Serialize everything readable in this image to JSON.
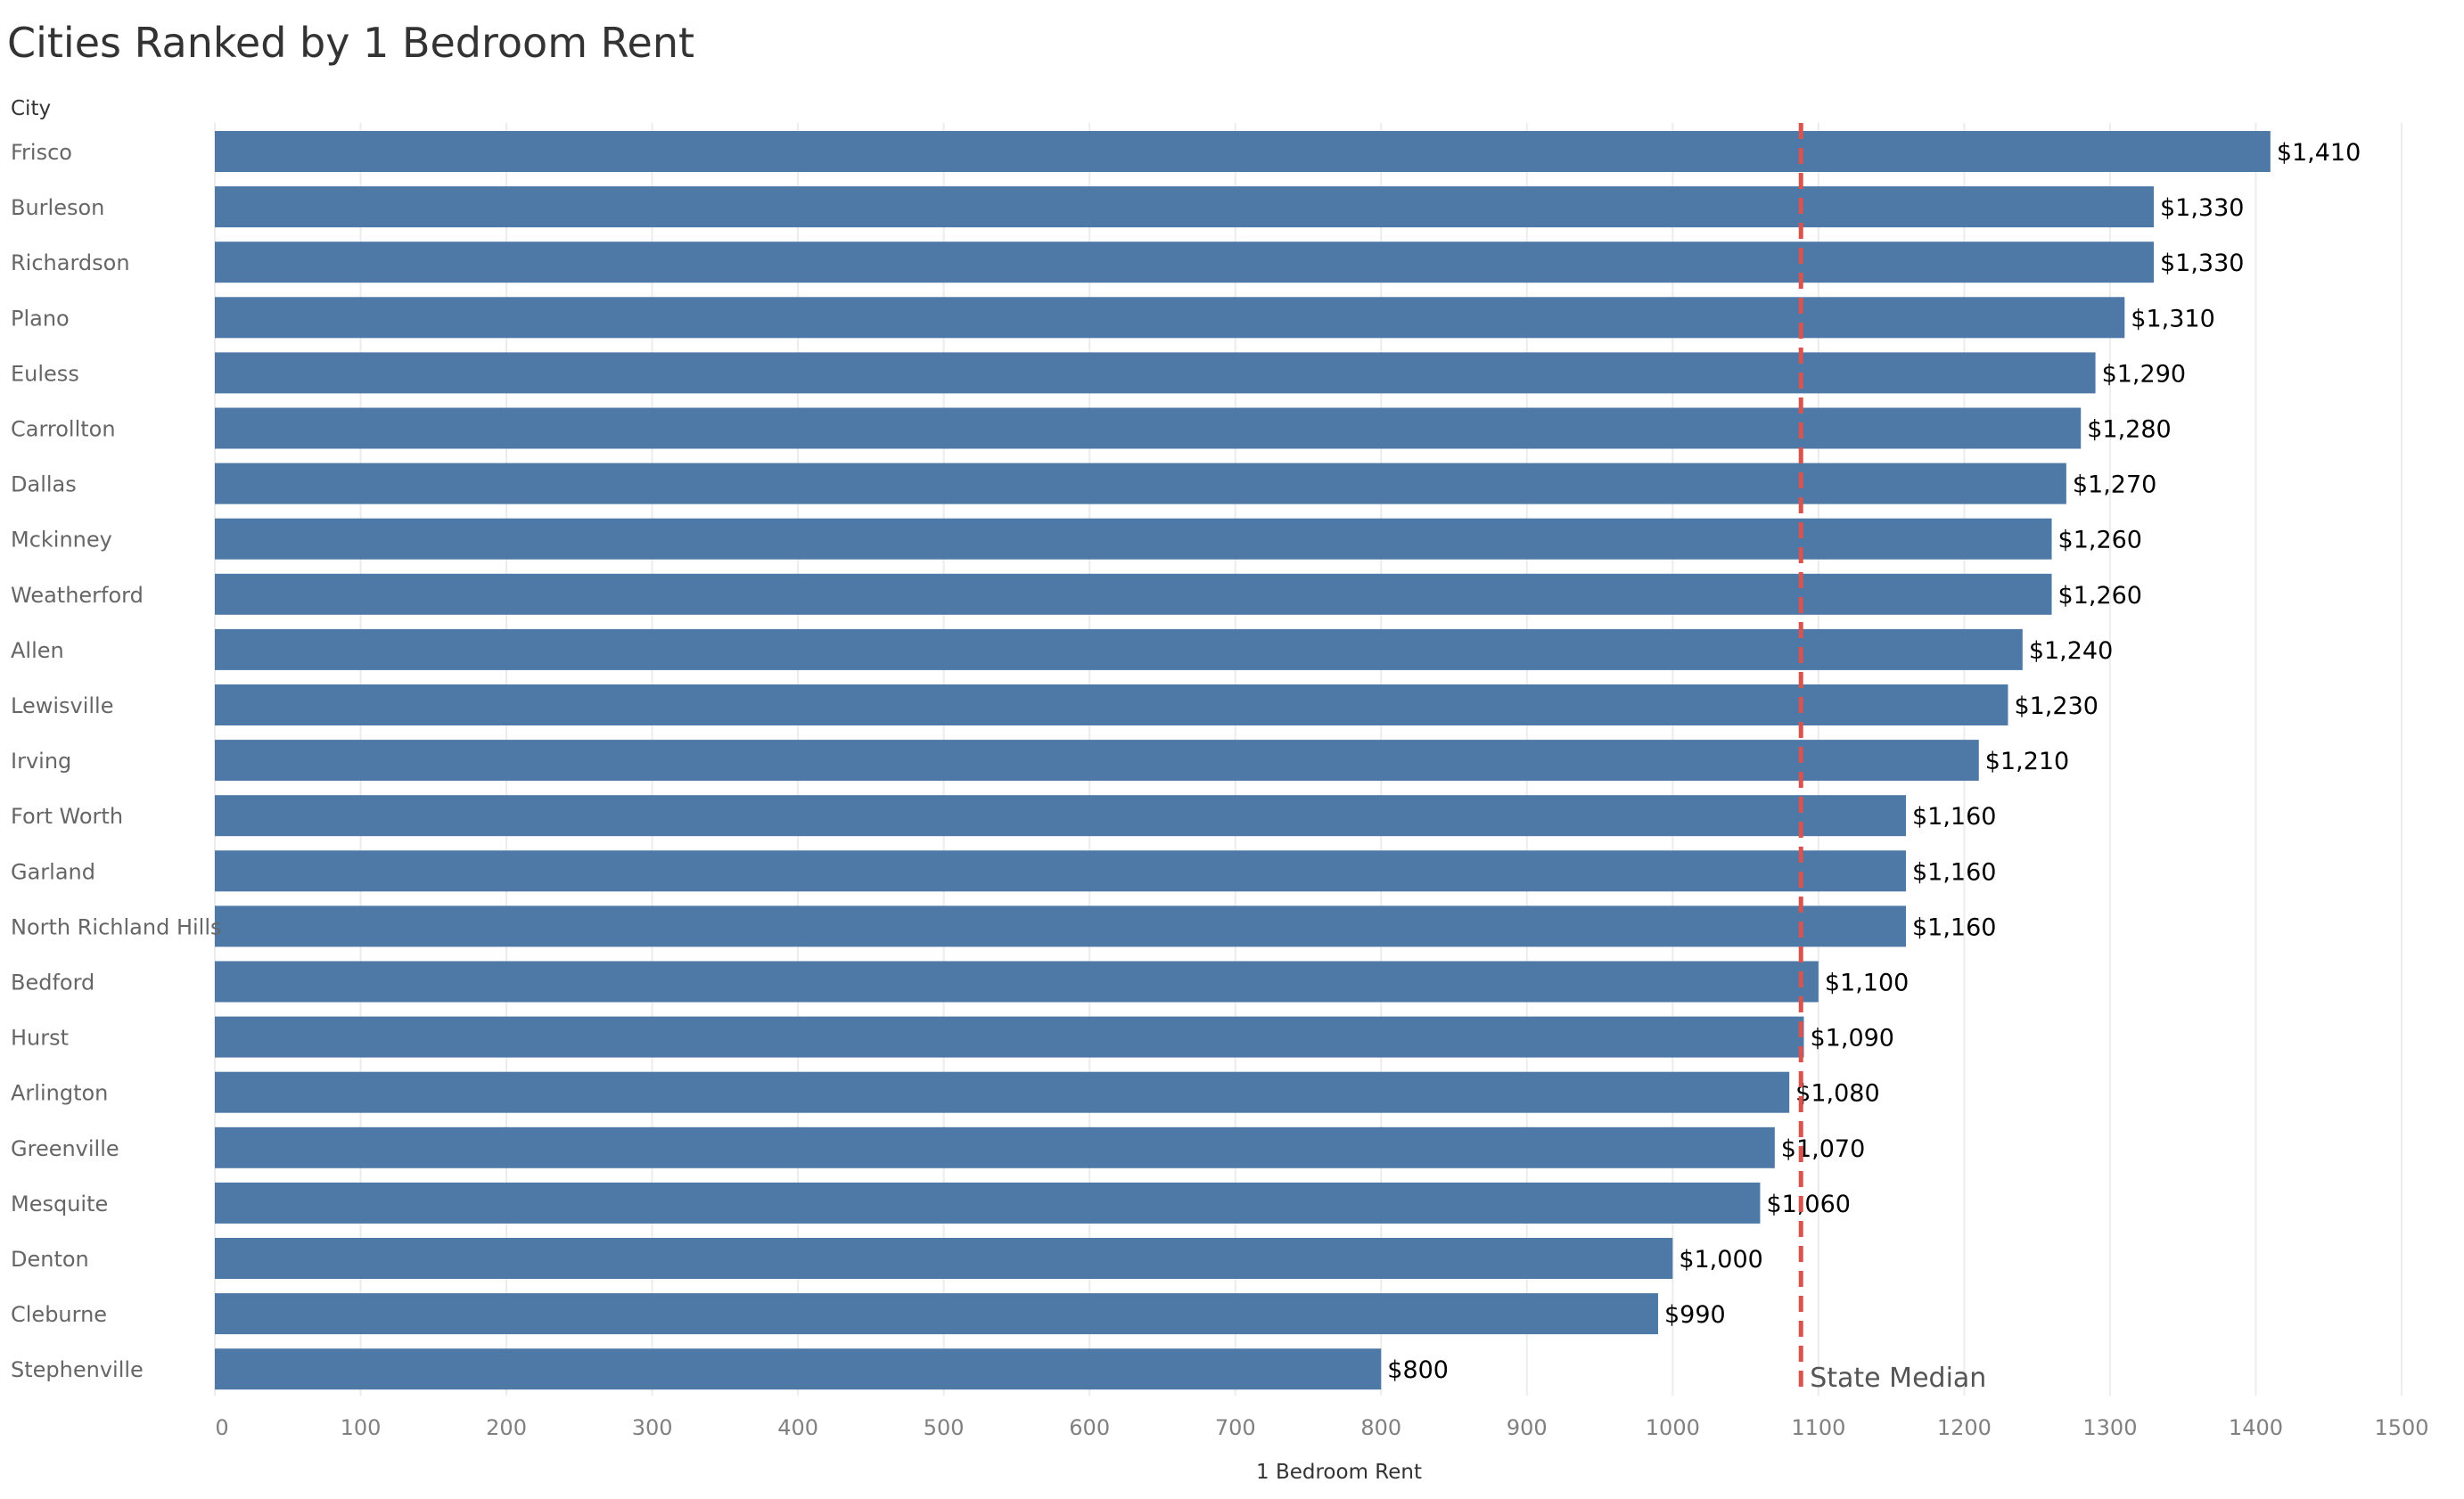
{
  "chart_data": {
    "type": "bar",
    "orientation": "horizontal",
    "title": "Cities Ranked by 1 Bedroom Rent",
    "ylabel": "City",
    "xlabel": "1 Bedroom Rent",
    "xlim": [
      0,
      1500
    ],
    "xticks": [
      0,
      100,
      200,
      300,
      400,
      500,
      600,
      700,
      800,
      900,
      1000,
      1100,
      1200,
      1300,
      1400,
      1500
    ],
    "grid": true,
    "bar_color": "#4e79a7",
    "categories": [
      "Frisco",
      "Burleson",
      "Richardson",
      "Plano",
      "Euless",
      "Carrollton",
      "Dallas",
      "Mckinney",
      "Weatherford",
      "Allen",
      "Lewisville",
      "Irving",
      "Fort Worth",
      "Garland",
      "North Richland Hills",
      "Bedford",
      "Hurst",
      "Arlington",
      "Greenville",
      "Mesquite",
      "Denton",
      "Cleburne",
      "Stephenville"
    ],
    "values": [
      1410,
      1330,
      1330,
      1310,
      1290,
      1280,
      1270,
      1260,
      1260,
      1240,
      1230,
      1210,
      1160,
      1160,
      1160,
      1100,
      1090,
      1080,
      1070,
      1060,
      1000,
      990,
      800
    ],
    "value_labels": [
      "$1,410",
      "$1,330",
      "$1,330",
      "$1,310",
      "$1,290",
      "$1,280",
      "$1,270",
      "$1,260",
      "$1,260",
      "$1,240",
      "$1,230",
      "$1,210",
      "$1,160",
      "$1,160",
      "$1,160",
      "$1,100",
      "$1,090",
      "$1,080",
      "$1,070",
      "$1,060",
      "$1,000",
      "$990",
      "$800"
    ],
    "reference_line": {
      "label": "State Median",
      "value": 1088,
      "color": "#d9534f",
      "style": "dashed"
    }
  }
}
